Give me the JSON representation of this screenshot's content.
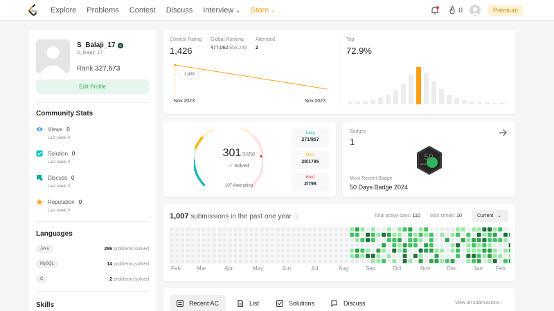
{
  "nav": {
    "links": [
      "Explore",
      "Problems",
      "Contest",
      "Discuss",
      "Interview",
      "Store"
    ],
    "streak": "0",
    "premium_label": "Premium"
  },
  "profile": {
    "username": "S_Balaji_17",
    "user_id": "S_Balaji_17",
    "rank_label": "Rank",
    "rank_value": "327,673",
    "edit_label": "Edit Profile"
  },
  "community": {
    "title": "Community Stats",
    "stats": [
      {
        "label": "Views",
        "value": "0",
        "last_week": "Last week 0",
        "color": "#1890ff"
      },
      {
        "label": "Solution",
        "value": "0",
        "last_week": "Last week 0",
        "color": "#13c2c2"
      },
      {
        "label": "Discuss",
        "value": "0",
        "last_week": "Last week 0",
        "color": "#13a8a8"
      },
      {
        "label": "Reputation",
        "value": "0",
        "last_week": "Last week 0",
        "color": "#ffa116"
      }
    ]
  },
  "languages": {
    "title": "Languages",
    "items": [
      {
        "name": "Java",
        "count": "286",
        "suffix": "problems solved"
      },
      {
        "name": "MySQL",
        "count": "14",
        "suffix": "problems solved"
      },
      {
        "name": "C",
        "count": "2",
        "suffix": "problems solved"
      }
    ]
  },
  "skills": {
    "title": "Skills"
  },
  "contest": {
    "rating_label": "Contest Rating",
    "rating": "1,426",
    "global_label": "Global Ranking",
    "global_rank": "477,062",
    "global_total": "/658,249",
    "attended_label": "Attended",
    "attended": "2",
    "tooltip": "1,439",
    "date_start": "Nov 2023",
    "date_end": "Nov 2023",
    "top_label": "Top",
    "top_value": "72.9%"
  },
  "progress": {
    "solved": "301",
    "total": "/3450",
    "solved_label": "Solved",
    "attempting": "107 Attempting",
    "easy": {
      "label": "Easy",
      "value": "271/857",
      "color": "#1cbaba"
    },
    "medium": {
      "label": "Med.",
      "value": "28/1795",
      "color": "#ffb700"
    },
    "hard": {
      "label": "Hard",
      "value": "2/798",
      "color": "#f63737"
    }
  },
  "badges": {
    "label": "Badges",
    "count": "1",
    "recent_label": "Most Recent Badge",
    "recent_name": "50 Days Badge 2024",
    "badge_text": "50",
    "badge_sub": "DAYS"
  },
  "submissions": {
    "count": "1,007",
    "text": "submissions in the past one year",
    "active_label": "Total active days:",
    "active_value": "110",
    "streak_label": "Max streak:",
    "streak_value": "10",
    "current_label": "Current",
    "months": [
      "Feb",
      "Mar",
      "Apr",
      "May",
      "Jun",
      "Jul",
      "Aug",
      "Sep",
      "Oct",
      "Nov",
      "Dec",
      "Jan",
      "Feb"
    ]
  },
  "tabs": {
    "items": [
      "Recent AC",
      "List",
      "Solutions",
      "Discuss"
    ],
    "view_all": "View all submissions"
  }
}
